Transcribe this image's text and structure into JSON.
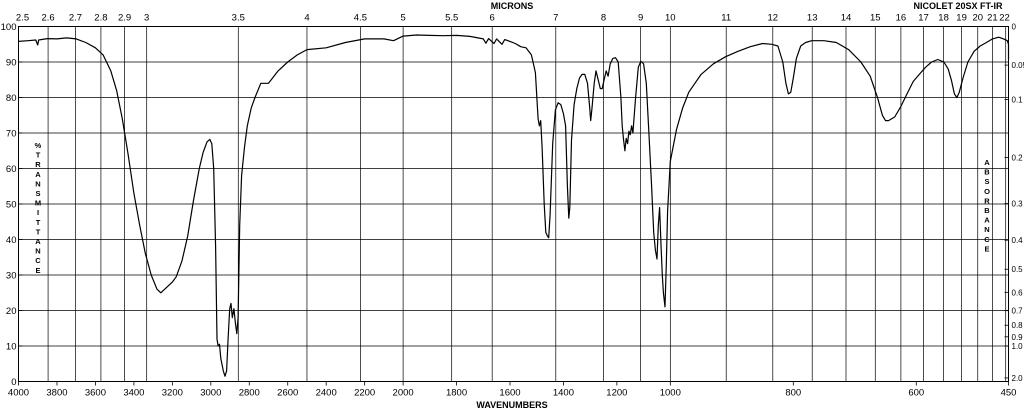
{
  "chart_data": {
    "type": "line",
    "title": "NICOLET 20SX FT-IR",
    "top_axis_label": "MICRONS",
    "xlabel": "WAVENUMBERS",
    "ylabel": "% TRANSMITTANCE",
    "y2label": "ABSORBANCE",
    "xlim": [
      4000,
      450
    ],
    "ylim": [
      0,
      100
    ],
    "grid": true,
    "x_ticks": [
      "4000",
      "3800",
      "3600",
      "3400",
      "3200",
      "3000",
      "2800",
      "2600",
      "2400",
      "2200",
      "2000",
      "1800",
      "1600",
      "1400",
      "1200",
      "1000",
      "800",
      "600",
      "450"
    ],
    "y_ticks": [
      "0",
      "10",
      "20",
      "30",
      "40",
      "50",
      "60",
      "70",
      "80",
      "90",
      "100"
    ],
    "micron_ticks": [
      "2.5",
      "2.6",
      "2.7",
      "2.8",
      "2.9",
      "3",
      "3.5",
      "4",
      "4.5",
      "5",
      "5.5",
      "6",
      "7",
      "8",
      "9",
      "10",
      "11",
      "12",
      "13",
      "14",
      "15",
      "16",
      "17",
      "18",
      "19",
      "20",
      "21",
      "22"
    ],
    "absorbance_ticks": [
      "0",
      "0.05",
      "0.1",
      "0.2",
      "0.3",
      "0.4",
      "0.5",
      "0.6",
      "0.7",
      "0.8",
      "0.9",
      "1.0",
      "2.0"
    ],
    "series": [
      {
        "color": "#000000",
        "points": [
          [
            4000,
            95.8
          ],
          [
            3950,
            96.0
          ],
          [
            3910,
            96.2
          ],
          [
            3900,
            94.8
          ],
          [
            3895,
            96.2
          ],
          [
            3850,
            96.6
          ],
          [
            3800,
            96.5
          ],
          [
            3750,
            96.8
          ],
          [
            3700,
            96.5
          ],
          [
            3650,
            95.5
          ],
          [
            3600,
            94.0
          ],
          [
            3560,
            92.0
          ],
          [
            3520,
            87.5
          ],
          [
            3490,
            82.0
          ],
          [
            3460,
            74.0
          ],
          [
            3430,
            64.0
          ],
          [
            3400,
            53.0
          ],
          [
            3370,
            44.0
          ],
          [
            3340,
            36.0
          ],
          [
            3310,
            30.0
          ],
          [
            3280,
            26.0
          ],
          [
            3260,
            25.0
          ],
          [
            3230,
            26.5
          ],
          [
            3200,
            28.0
          ],
          [
            3180,
            29.5
          ],
          [
            3150,
            34.0
          ],
          [
            3120,
            41.0
          ],
          [
            3090,
            51.0
          ],
          [
            3060,
            60.0
          ],
          [
            3040,
            64.5
          ],
          [
            3020,
            67.5
          ],
          [
            3005,
            68.2
          ],
          [
            2995,
            67.0
          ],
          [
            2985,
            60.0
          ],
          [
            2975,
            38.0
          ],
          [
            2968,
            12.0
          ],
          [
            2962,
            10.0
          ],
          [
            2955,
            10.5
          ],
          [
            2948,
            6.5
          ],
          [
            2935,
            3.0
          ],
          [
            2926,
            1.5
          ],
          [
            2918,
            3.0
          ],
          [
            2910,
            12.0
          ],
          [
            2902,
            20.5
          ],
          [
            2895,
            22.0
          ],
          [
            2888,
            18.0
          ],
          [
            2880,
            20.5
          ],
          [
            2872,
            16.5
          ],
          [
            2865,
            13.5
          ],
          [
            2858,
            18.0
          ],
          [
            2850,
            44.0
          ],
          [
            2840,
            58.0
          ],
          [
            2825,
            66.0
          ],
          [
            2810,
            72.0
          ],
          [
            2790,
            77.0
          ],
          [
            2770,
            80.0
          ],
          [
            2740,
            84.0
          ],
          [
            2700,
            84.0
          ],
          [
            2650,
            87.5
          ],
          [
            2600,
            90.0
          ],
          [
            2550,
            92.0
          ],
          [
            2500,
            93.5
          ],
          [
            2400,
            94.0
          ],
          [
            2300,
            95.5
          ],
          [
            2200,
            96.5
          ],
          [
            2100,
            96.5
          ],
          [
            2050,
            96.0
          ],
          [
            2000,
            97.3
          ],
          [
            1950,
            97.6
          ],
          [
            1900,
            97.5
          ],
          [
            1850,
            97.4
          ],
          [
            1800,
            97.5
          ],
          [
            1750,
            97.2
          ],
          [
            1700,
            96.5
          ],
          [
            1690,
            95.3
          ],
          [
            1680,
            96.6
          ],
          [
            1660,
            95.2
          ],
          [
            1650,
            96.5
          ],
          [
            1630,
            95.0
          ],
          [
            1620,
            96.3
          ],
          [
            1600,
            95.8
          ],
          [
            1580,
            95.2
          ],
          [
            1560,
            94.3
          ],
          [
            1540,
            94.0
          ],
          [
            1520,
            92.0
          ],
          [
            1505,
            87.0
          ],
          [
            1495,
            74.0
          ],
          [
            1490,
            72.0
          ],
          [
            1485,
            73.5
          ],
          [
            1480,
            66.0
          ],
          [
            1472,
            50.0
          ],
          [
            1466,
            42.0
          ],
          [
            1460,
            41.0
          ],
          [
            1455,
            40.5
          ],
          [
            1450,
            47.0
          ],
          [
            1440,
            67.0
          ],
          [
            1430,
            76.5
          ],
          [
            1420,
            78.5
          ],
          [
            1410,
            78.0
          ],
          [
            1400,
            75.5
          ],
          [
            1392,
            72.0
          ],
          [
            1385,
            55.0
          ],
          [
            1380,
            46.0
          ],
          [
            1376,
            49.0
          ],
          [
            1370,
            68.0
          ],
          [
            1360,
            78.0
          ],
          [
            1350,
            82.5
          ],
          [
            1340,
            85.5
          ],
          [
            1330,
            86.5
          ],
          [
            1320,
            86.5
          ],
          [
            1310,
            84.0
          ],
          [
            1302,
            77.5
          ],
          [
            1298,
            73.5
          ],
          [
            1293,
            77.0
          ],
          [
            1285,
            84.0
          ],
          [
            1278,
            87.5
          ],
          [
            1270,
            85.0
          ],
          [
            1262,
            82.5
          ],
          [
            1255,
            82.5
          ],
          [
            1248,
            85.0
          ],
          [
            1240,
            87.5
          ],
          [
            1233,
            86.0
          ],
          [
            1225,
            89.5
          ],
          [
            1215,
            91.0
          ],
          [
            1205,
            91.2
          ],
          [
            1195,
            90.0
          ],
          [
            1185,
            80.0
          ],
          [
            1180,
            72.0
          ],
          [
            1175,
            68.0
          ],
          [
            1170,
            65.0
          ],
          [
            1165,
            68.5
          ],
          [
            1160,
            67.0
          ],
          [
            1155,
            70.5
          ],
          [
            1150,
            69.5
          ],
          [
            1145,
            72.0
          ],
          [
            1140,
            70.0
          ],
          [
            1130,
            80.0
          ],
          [
            1120,
            88.5
          ],
          [
            1110,
            90.2
          ],
          [
            1100,
            89.5
          ],
          [
            1090,
            84.0
          ],
          [
            1080,
            70.0
          ],
          [
            1070,
            55.0
          ],
          [
            1062,
            42.0
          ],
          [
            1056,
            37.0
          ],
          [
            1050,
            34.5
          ],
          [
            1045,
            44.0
          ],
          [
            1040,
            49.0
          ],
          [
            1035,
            38.5
          ],
          [
            1030,
            30.0
          ],
          [
            1026,
            25.0
          ],
          [
            1020,
            21.0
          ],
          [
            1015,
            33.0
          ],
          [
            1010,
            48.0
          ],
          [
            1000,
            62.0
          ],
          [
            990,
            71.0
          ],
          [
            980,
            77.0
          ],
          [
            970,
            81.5
          ],
          [
            950,
            86.5
          ],
          [
            930,
            89.5
          ],
          [
            910,
            91.5
          ],
          [
            890,
            93.0
          ],
          [
            870,
            94.3
          ],
          [
            850,
            95.2
          ],
          [
            835,
            95.0
          ],
          [
            825,
            94.5
          ],
          [
            817,
            90.0
          ],
          [
            812,
            84.0
          ],
          [
            808,
            81.0
          ],
          [
            804,
            81.5
          ],
          [
            800,
            85.5
          ],
          [
            795,
            91.0
          ],
          [
            788,
            94.5
          ],
          [
            780,
            95.5
          ],
          [
            770,
            96.0
          ],
          [
            750,
            96.0
          ],
          [
            730,
            95.5
          ],
          [
            710,
            93.5
          ],
          [
            690,
            90.0
          ],
          [
            675,
            86.0
          ],
          [
            663,
            80.0
          ],
          [
            655,
            75.0
          ],
          [
            650,
            73.5
          ],
          [
            645,
            73.5
          ],
          [
            635,
            74.5
          ],
          [
            625,
            77.5
          ],
          [
            615,
            81.0
          ],
          [
            605,
            84.5
          ],
          [
            595,
            86.5
          ],
          [
            585,
            88.5
          ],
          [
            575,
            90.0
          ],
          [
            565,
            90.7
          ],
          [
            555,
            90.0
          ],
          [
            548,
            88.0
          ],
          [
            543,
            85.0
          ],
          [
            538,
            81.0
          ],
          [
            534,
            80.0
          ],
          [
            530,
            81.5
          ],
          [
            524,
            85.5
          ],
          [
            516,
            90.0
          ],
          [
            506,
            93.0
          ],
          [
            496,
            94.5
          ],
          [
            486,
            95.5
          ],
          [
            476,
            96.5
          ],
          [
            466,
            97.0
          ],
          [
            458,
            96.5
          ],
          [
            452,
            96.0
          ],
          [
            448,
            95.0
          ],
          [
            443,
            92.5
          ],
          [
            440,
            90.8
          ],
          [
            436,
            92.5
          ],
          [
            430,
            94.0
          ],
          [
            425,
            94.5
          ]
        ]
      }
    ]
  }
}
